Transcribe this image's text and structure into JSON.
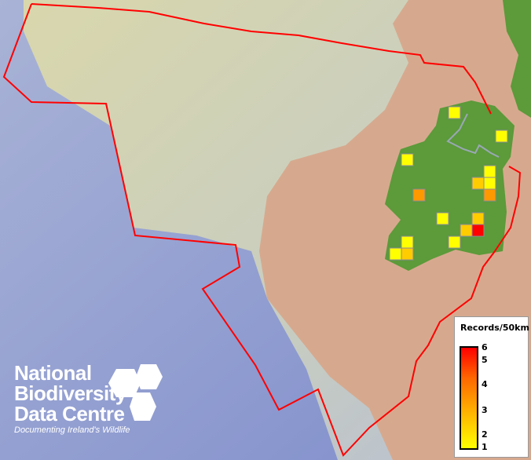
{
  "legend": {
    "title": "Records/50km",
    "ticks": [
      "6",
      "5",
      "4",
      "3",
      "2",
      "1"
    ],
    "ramp_colors": [
      "#ffff00",
      "#ffaa00",
      "#ff6600",
      "#ff0000"
    ]
  },
  "logo": {
    "line1": "National",
    "line2": "Biodiversity",
    "line3": "Data Centre",
    "tagline": "Documenting Ireland's Wildlife"
  },
  "colors": {
    "boundary": "#ff0000",
    "land": "#5c9a3a",
    "sea_deep": "#8d97d0",
    "sea_shelf": "#d8cfa8",
    "neighbour_land": "#d8a68a"
  },
  "grid_squares": [
    {
      "col": 0,
      "row": 0,
      "value": 1
    },
    {
      "col": 4,
      "row": 2,
      "value": 1
    },
    {
      "col": -4,
      "row": 4,
      "value": 1
    },
    {
      "col": 3,
      "row": 5,
      "value": 1
    },
    {
      "col": 2,
      "row": 6,
      "value": 2
    },
    {
      "col": 3,
      "row": 6,
      "value": 1
    },
    {
      "col": 3,
      "row": 7,
      "value": 3
    },
    {
      "col": -3,
      "row": 7,
      "value": 3
    },
    {
      "col": -1,
      "row": 9,
      "value": 1
    },
    {
      "col": 2,
      "row": 9,
      "value": 2
    },
    {
      "col": 1,
      "row": 10,
      "value": 2
    },
    {
      "col": 2,
      "row": 10,
      "value": 6
    },
    {
      "col": 0,
      "row": 11,
      "value": 1
    },
    {
      "col": -4,
      "row": 11,
      "value": 1
    },
    {
      "col": -5,
      "row": 12,
      "value": 1
    },
    {
      "col": -4,
      "row": 12,
      "value": 2
    }
  ]
}
